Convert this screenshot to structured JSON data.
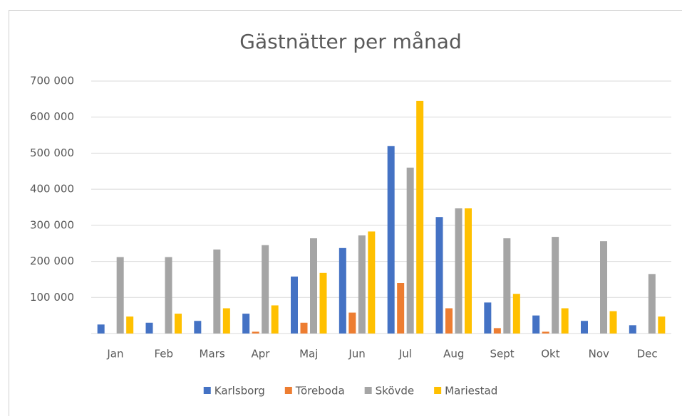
{
  "chart_data": {
    "type": "bar",
    "title": "Gästnätter per månad",
    "categories": [
      "Jan",
      "Feb",
      "Mars",
      "Apr",
      "Maj",
      "Jun",
      "Jul",
      "Aug",
      "Sept",
      "Okt",
      "Nov",
      "Dec"
    ],
    "series": [
      {
        "name": "Karlsborg",
        "color": "#4472c4",
        "values": [
          25000,
          30000,
          35000,
          55000,
          158000,
          237000,
          520000,
          323000,
          86000,
          50000,
          35000,
          23000
        ]
      },
      {
        "name": "Töreboda",
        "color": "#ed7d31",
        "values": [
          0,
          0,
          0,
          5000,
          30000,
          58000,
          140000,
          70000,
          15000,
          5000,
          0,
          0
        ]
      },
      {
        "name": "Skövde",
        "color": "#a5a5a5",
        "values": [
          212000,
          212000,
          233000,
          245000,
          264000,
          272000,
          460000,
          347000,
          264000,
          268000,
          256000,
          165000
        ]
      },
      {
        "name": "Mariestad",
        "color": "#ffc000",
        "values": [
          47000,
          55000,
          70000,
          78000,
          168000,
          283000,
          645000,
          347000,
          110000,
          70000,
          62000,
          47000
        ]
      }
    ],
    "ylim": [
      0,
      700000
    ],
    "yticks": [
      {
        "value": 100000,
        "label": "100 000"
      },
      {
        "value": 200000,
        "label": "200 000"
      },
      {
        "value": 300000,
        "label": "300 000"
      },
      {
        "value": 400000,
        "label": "400 000"
      },
      {
        "value": 500000,
        "label": "500 000"
      },
      {
        "value": 600000,
        "label": "600 000"
      },
      {
        "value": 700000,
        "label": "700 000"
      }
    ],
    "grid": true,
    "legend": "bottom"
  }
}
